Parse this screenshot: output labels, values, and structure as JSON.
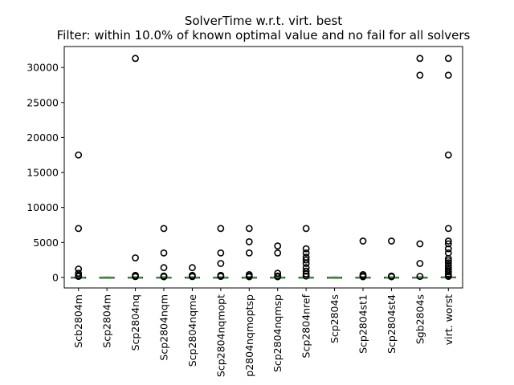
{
  "chart_data": {
    "type": "boxplot",
    "title": "SolverTime w.r.t. virt. best",
    "subtitle": "Filter: within 10.0% of known optimal value and no fail for all solvers",
    "xlabel": "",
    "ylabel": "",
    "ylim": [
      -1500,
      33000
    ],
    "yticks": [
      0,
      5000,
      10000,
      15000,
      20000,
      25000,
      30000
    ],
    "ytick_labels": [
      "0",
      "5000",
      "10000",
      "15000",
      "20000",
      "25000",
      "30000"
    ],
    "grid": false,
    "categories": [
      "Scb2804m",
      "Scp2804m",
      "Scp2804nq",
      "Scp2804nqm",
      "Scp2804nqme",
      "Scp2804nqmopt",
      "Scp2804nqmoptsp",
      "Scp2804nqmsp",
      "Scp2804nref",
      "Scp2804s",
      "Scp2804st1",
      "Scp2804st4",
      "Sgb2804s",
      "virt. worst"
    ],
    "category_labels_shown": [
      "Scb2804m",
      "Scp2804m",
      "Scp2804nq",
      "Scp2804nqm",
      "Scp2804nqme",
      "Scp2804nqmopt",
      "p2804nqmoptsp",
      "Scp2804nqmsp",
      "Scp2804nref",
      "Scp2804s",
      "Scp2804st1",
      "Scp2804st4",
      "Sgb2804s",
      "virt. worst"
    ],
    "boxes": [
      {
        "q1": 0,
        "median": 5,
        "q3": 30,
        "whisker_low": 0,
        "whisker_high": 80
      },
      {
        "q1": 0,
        "median": 5,
        "q3": 20,
        "whisker_low": 0,
        "whisker_high": 50
      },
      {
        "q1": 0,
        "median": 5,
        "q3": 30,
        "whisker_low": 0,
        "whisker_high": 80
      },
      {
        "q1": 0,
        "median": 5,
        "q3": 30,
        "whisker_low": 0,
        "whisker_high": 80
      },
      {
        "q1": 0,
        "median": 5,
        "q3": 30,
        "whisker_low": 0,
        "whisker_high": 80
      },
      {
        "q1": 0,
        "median": 5,
        "q3": 30,
        "whisker_low": 0,
        "whisker_high": 80
      },
      {
        "q1": 0,
        "median": 5,
        "q3": 30,
        "whisker_low": 0,
        "whisker_high": 80
      },
      {
        "q1": 0,
        "median": 5,
        "q3": 30,
        "whisker_low": 0,
        "whisker_high": 80
      },
      {
        "q1": 0,
        "median": 5,
        "q3": 30,
        "whisker_low": 0,
        "whisker_high": 80
      },
      {
        "q1": 0,
        "median": 5,
        "q3": 20,
        "whisker_low": 0,
        "whisker_high": 50
      },
      {
        "q1": 0,
        "median": 5,
        "q3": 30,
        "whisker_low": 0,
        "whisker_high": 80
      },
      {
        "q1": 0,
        "median": 5,
        "q3": 30,
        "whisker_low": 0,
        "whisker_high": 80
      },
      {
        "q1": 0,
        "median": 5,
        "q3": 30,
        "whisker_low": 0,
        "whisker_high": 80
      },
      {
        "q1": 0,
        "median": 10,
        "q3": 60,
        "whisker_low": 0,
        "whisker_high": 150
      }
    ],
    "fliers": [
      [
        17500,
        7000,
        1200,
        600,
        300,
        150
      ],
      [],
      [
        31300,
        2800,
        300,
        120
      ],
      [
        7000,
        3500,
        1400,
        200,
        100
      ],
      [
        1400,
        300,
        120
      ],
      [
        7000,
        3500,
        2000,
        300,
        150
      ],
      [
        7000,
        5100,
        3500,
        400,
        200,
        100
      ],
      [
        4500,
        3500,
        600,
        200,
        100
      ],
      [
        7000,
        4100,
        3500,
        2900,
        2500,
        2000,
        1400,
        900,
        500,
        200
      ],
      [],
      [
        5200,
        400,
        200,
        100
      ],
      [
        5200,
        200,
        100
      ],
      [
        31300,
        28900,
        4800,
        2000,
        150
      ],
      [
        31300,
        28900,
        17500,
        7000,
        5200,
        4800,
        4100,
        3500,
        2700,
        2400,
        2100,
        1700,
        1400,
        1100,
        800,
        500,
        300,
        150
      ]
    ]
  }
}
